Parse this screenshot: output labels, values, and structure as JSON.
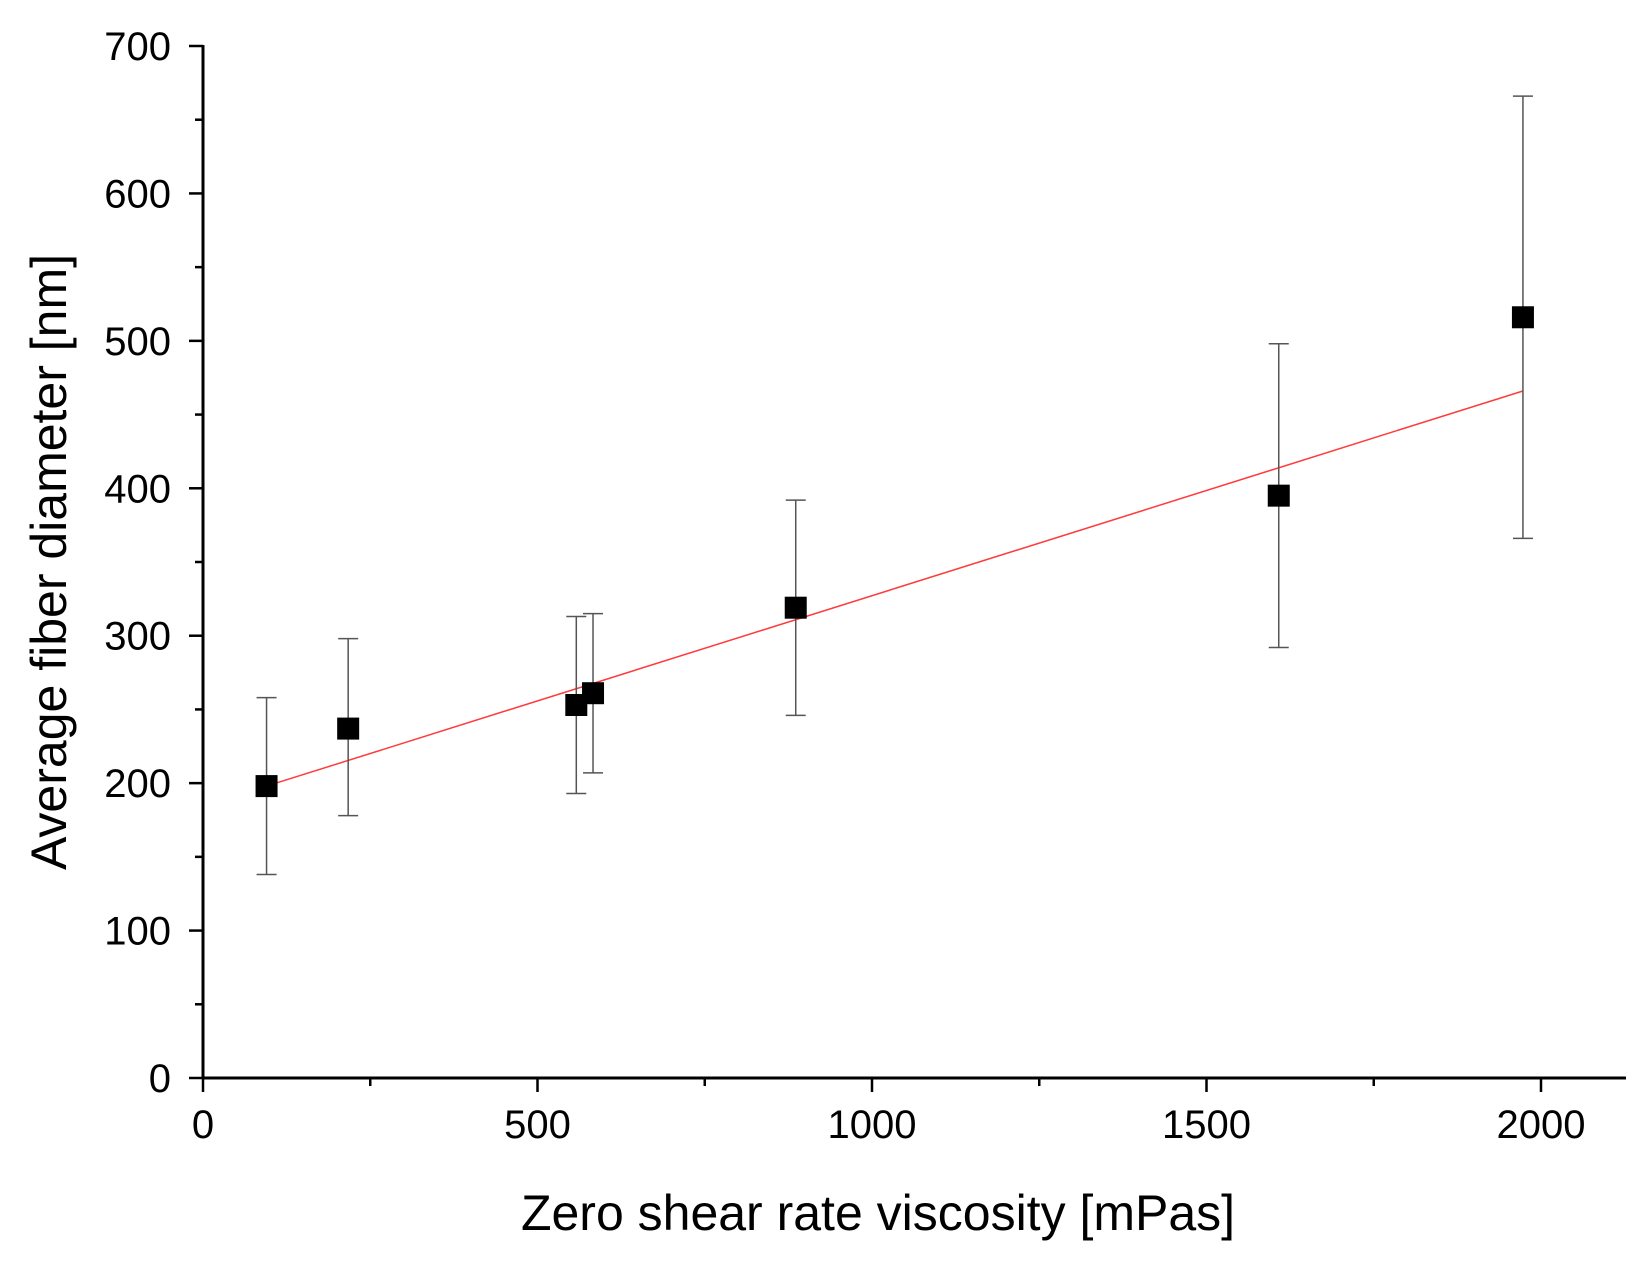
{
  "chart_data": {
    "type": "scatter",
    "xlabel": "Zero shear rate viscosity [mPas]",
    "ylabel": "Average fiber diameter [nm]",
    "xlim": [
      0,
      2120
    ],
    "ylim": [
      0,
      700
    ],
    "x_ticks": [
      0,
      500,
      1000,
      1500,
      2000
    ],
    "x_minor_ticks": [
      250,
      750,
      1250,
      1750
    ],
    "y_ticks": [
      0,
      100,
      200,
      300,
      400,
      500,
      600,
      700
    ],
    "y_minor_ticks": [
      50,
      150,
      250,
      350,
      450,
      550,
      650
    ],
    "grid": false,
    "legend": "none",
    "points": [
      {
        "x": 95,
        "y": 198,
        "err_low": 138,
        "err_high": 258
      },
      {
        "x": 217,
        "y": 237,
        "err_low": 178,
        "err_high": 298
      },
      {
        "x": 558,
        "y": 253,
        "err_low": 193,
        "err_high": 313
      },
      {
        "x": 583,
        "y": 261,
        "err_low": 207,
        "err_high": 315
      },
      {
        "x": 886,
        "y": 319,
        "err_low": 246,
        "err_high": 392
      },
      {
        "x": 1608,
        "y": 395,
        "err_low": 292,
        "err_high": 498
      },
      {
        "x": 1973,
        "y": 516,
        "err_low": 366,
        "err_high": 666
      }
    ],
    "fit_line": {
      "x": [
        95,
        1973
      ],
      "y": [
        198,
        466
      ]
    },
    "colors": {
      "marker": "#000000",
      "error_bar": "#555555",
      "fit_line": "#ff3b3b",
      "axis": "#000000"
    }
  }
}
